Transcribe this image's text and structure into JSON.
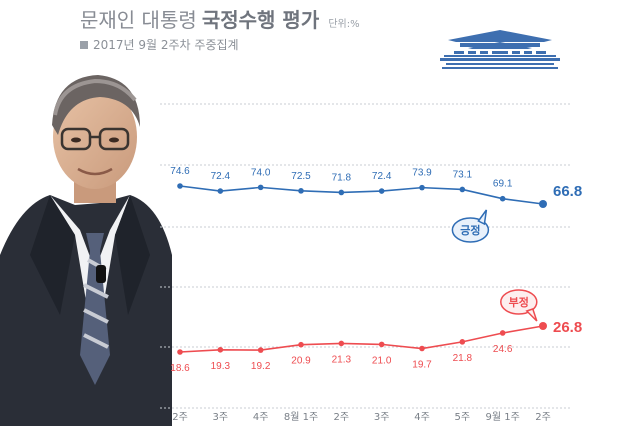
{
  "header": {
    "title_light": "문재인 대통령",
    "title_bold": "국정수행 평가",
    "unit": "단위:%",
    "subtitle": "2017년 9월 2주차 주중집계"
  },
  "colors": {
    "positive": "#2f6db5",
    "negative": "#ee4c50",
    "gridline": "#c8cdd3",
    "palace": "#3e6fb0"
  },
  "icons": [
    "blue-house-icon",
    "portrait-illustration"
  ],
  "chart_data": {
    "type": "line",
    "categories": [
      "2주",
      "3주",
      "4주",
      "8월 1주",
      "2주",
      "3주",
      "4주",
      "5주",
      "9월 1주",
      "2주"
    ],
    "series": [
      {
        "name": "긍정",
        "values": [
          74.6,
          72.4,
          74.0,
          72.5,
          71.8,
          72.4,
          73.9,
          73.1,
          69.1,
          66.8
        ],
        "labels": [
          "74.6",
          "72.4",
          "74.0",
          "72.5",
          "71.8",
          "72.4",
          "73.9",
          "73.1",
          "69.1",
          "66.8"
        ]
      },
      {
        "name": "부정",
        "values": [
          18.6,
          19.3,
          19.2,
          20.9,
          21.3,
          21.0,
          19.7,
          21.8,
          24.6,
          26.8
        ],
        "labels": [
          "18.6",
          "19.3",
          "19.2",
          "20.9",
          "21.3",
          "21.0",
          "19.7",
          "21.8",
          "24.6",
          "26.8"
        ]
      }
    ],
    "grid": true,
    "legend": "inline-callouts"
  }
}
